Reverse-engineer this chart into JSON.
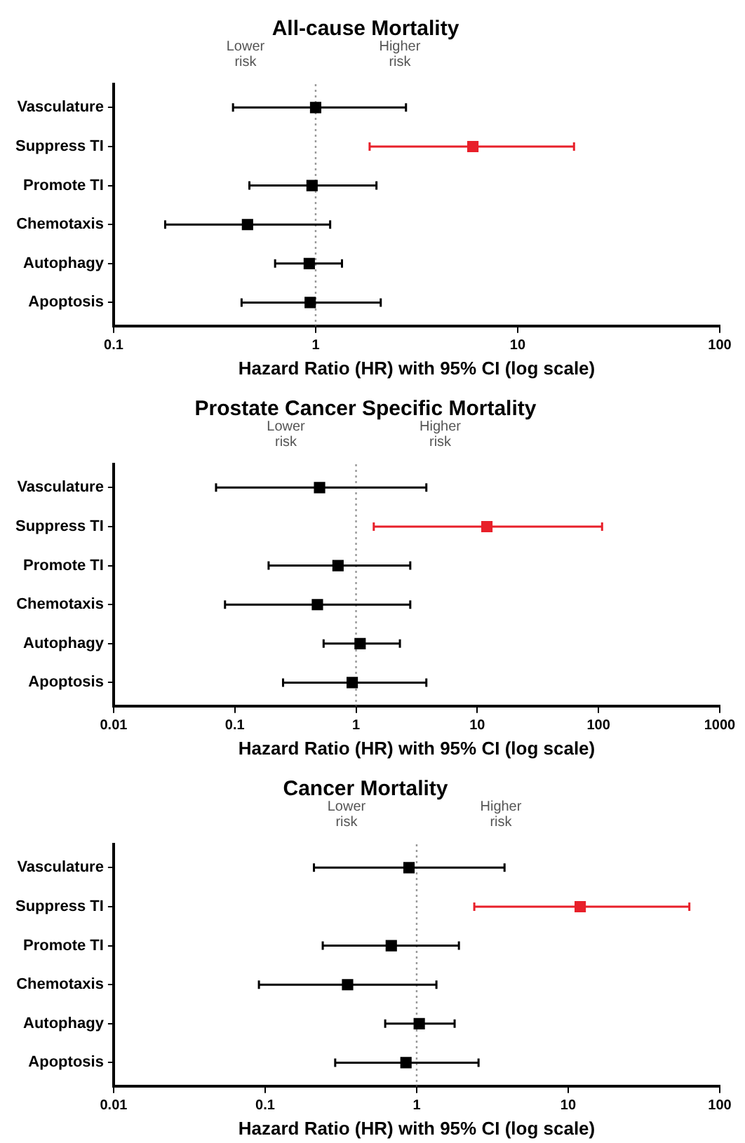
{
  "chart_data": [
    {
      "type": "scatter",
      "orientation": "horizontal",
      "title": "All-cause Mortality",
      "xlabel": "Hazard Ratio (HR) with 95% CI (log scale)",
      "categories": [
        "Vasculature",
        "Suppress TI",
        "Promote TI",
        "Chemotaxis",
        "Autophagy",
        "Apoptosis"
      ],
      "values": [
        1.0,
        6.0,
        0.96,
        0.46,
        0.93,
        0.94
      ],
      "errors": [
        [
          0.39,
          2.8
        ],
        [
          1.85,
          19
        ],
        [
          0.47,
          2.0
        ],
        [
          0.18,
          1.18
        ],
        [
          0.63,
          1.35
        ],
        [
          0.43,
          2.1
        ]
      ],
      "colors": [
        "#000000",
        "#e8202a",
        "#000000",
        "#000000",
        "#000000",
        "#000000"
      ],
      "log": "x",
      "xlim": [
        0.1,
        100
      ],
      "xticks": [
        0.1,
        1,
        10,
        100
      ],
      "marker": "square",
      "grid": false,
      "legend": false,
      "ref_lines": [
        {
          "axis": "x",
          "value": 1,
          "color": "#999999",
          "line_style": "dotted"
        }
      ],
      "annotations": [
        "Lower\nrisk",
        "Higher\nrisk"
      ]
    },
    {
      "type": "scatter",
      "orientation": "horizontal",
      "title": "Prostate Cancer Specific Mortality",
      "xlabel": "Hazard Ratio (HR) with 95% CI (log scale)",
      "categories": [
        "Vasculature",
        "Suppress TI",
        "Promote TI",
        "Chemotaxis",
        "Autophagy",
        "Apoptosis"
      ],
      "values": [
        0.5,
        12,
        0.71,
        0.48,
        1.08,
        0.93
      ],
      "errors": [
        [
          0.07,
          3.8
        ],
        [
          1.4,
          107
        ],
        [
          0.19,
          2.8
        ],
        [
          0.083,
          2.8
        ],
        [
          0.54,
          2.3
        ],
        [
          0.25,
          3.8
        ]
      ],
      "colors": [
        "#000000",
        "#e8202a",
        "#000000",
        "#000000",
        "#000000",
        "#000000"
      ],
      "log": "x",
      "xlim": [
        0.01,
        1000
      ],
      "xticks": [
        0.01,
        0.1,
        1,
        10,
        100,
        1000
      ],
      "marker": "square",
      "grid": false,
      "legend": false,
      "ref_lines": [
        {
          "axis": "x",
          "value": 1,
          "color": "#999999",
          "line_style": "dotted"
        }
      ],
      "annotations": [
        "Lower\nrisk",
        "Higher\nrisk"
      ]
    },
    {
      "type": "scatter",
      "orientation": "horizontal",
      "title": "Cancer Mortality",
      "xlabel": "Hazard Ratio (HR) with 95% CI (log scale)",
      "categories": [
        "Vasculature",
        "Suppress TI",
        "Promote TI",
        "Chemotaxis",
        "Autophagy",
        "Apoptosis"
      ],
      "values": [
        0.89,
        12,
        0.68,
        0.35,
        1.04,
        0.85
      ],
      "errors": [
        [
          0.21,
          3.8
        ],
        [
          2.4,
          63
        ],
        [
          0.24,
          1.9
        ],
        [
          0.091,
          1.35
        ],
        [
          0.62,
          1.78
        ],
        [
          0.29,
          2.56
        ]
      ],
      "colors": [
        "#000000",
        "#e8202a",
        "#000000",
        "#000000",
        "#000000",
        "#000000"
      ],
      "log": "x",
      "xlim": [
        0.01,
        100
      ],
      "xticks": [
        0.01,
        0.1,
        1,
        10,
        100
      ],
      "marker": "square",
      "grid": false,
      "legend": false,
      "ref_lines": [
        {
          "axis": "x",
          "value": 1,
          "color": "#999999",
          "line_style": "dotted"
        }
      ],
      "annotations": [
        "Lower\nrisk",
        "Higher\nrisk"
      ]
    }
  ]
}
